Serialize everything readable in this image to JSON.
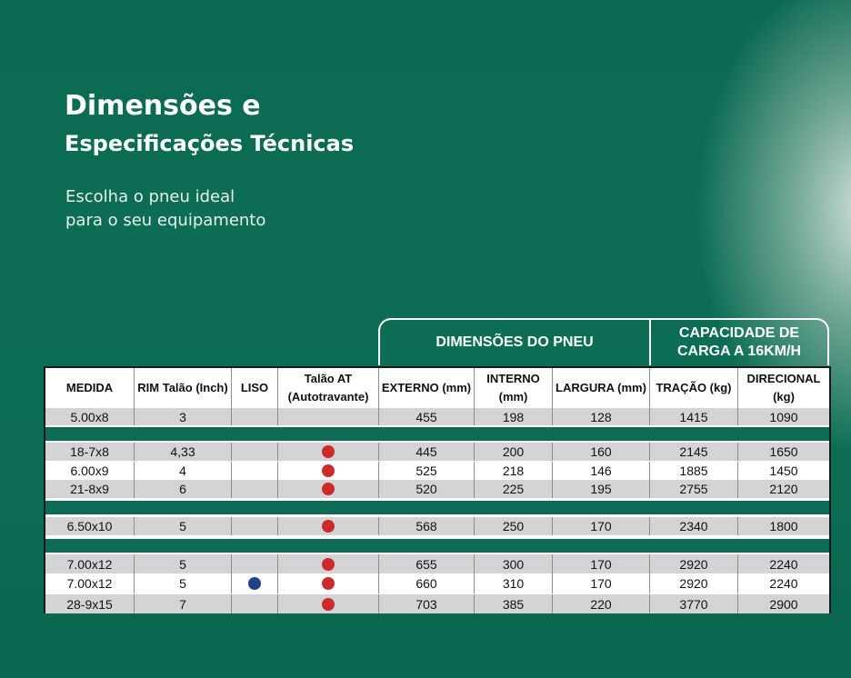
{
  "title": {
    "line1": "Dimensões e",
    "line2": "Especificações Técnicas"
  },
  "subtitle": {
    "line1": "Escolha o pneu ideal",
    "line2": "para o seu equipamento"
  },
  "groups": {
    "dimensions": "DIMENSÕES DO PNEU",
    "capacity_line1": "CAPACIDADE DE",
    "capacity_line2": "CARGA A 16KM/H"
  },
  "headers": [
    "MEDIDA",
    "RIM Talão (Inch)",
    "LISO",
    "Talão AT (Autotravante)",
    "EXTERNO (mm)",
    "INTERNO (mm)",
    "LARGURA (mm)",
    "TRAÇÃO (kg)",
    "DIRECIONAL (kg)"
  ],
  "rows": [
    [
      "5.00x8",
      "3",
      "",
      "",
      "455",
      "198",
      "128",
      "1415",
      "1090"
    ],
    [
      "18-7x8",
      "4,33",
      "",
      "red",
      "445",
      "200",
      "160",
      "2145",
      "1650"
    ],
    [
      "6.00x9",
      "4",
      "",
      "red",
      "525",
      "218",
      "146",
      "1885",
      "1450"
    ],
    [
      "21-8x9",
      "6",
      "",
      "red",
      "520",
      "225",
      "195",
      "2755",
      "2120"
    ],
    [
      "6.50x10",
      "5",
      "",
      "red",
      "568",
      "250",
      "170",
      "2340",
      "1800"
    ],
    [
      "7.00x12",
      "5",
      "",
      "red",
      "655",
      "300",
      "170",
      "2920",
      "2240"
    ],
    [
      "7.00x12",
      "5",
      "blue",
      "red",
      "660",
      "310",
      "170",
      "2920",
      "2240"
    ],
    [
      "28-9x15",
      "7",
      "",
      "red",
      "703",
      "385",
      "220",
      "3770",
      "2900"
    ]
  ],
  "colors": {
    "background": "#0b6a52",
    "liso_marker": "#23408a",
    "talao_marker": "#cc2b2b",
    "separator": "#0e6b55"
  }
}
